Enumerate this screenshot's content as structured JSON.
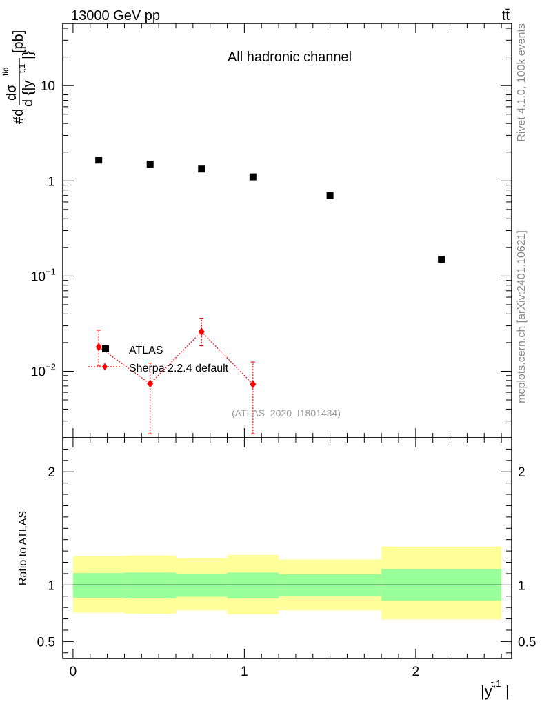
{
  "header": {
    "left": "13000 GeV pp",
    "right": "tt̄"
  },
  "side_labels": {
    "rivet": "Rivet 4.1.0,  100k events",
    "mcplots": "mcplots.cern.ch [arXiv:2401.10621]"
  },
  "chart_data": [
    {
      "type": "scatter",
      "title": "All hadronic channel",
      "ylabel_parts": {
        "prefix": "#d",
        "num": "dσ",
        "num_sup": "fid",
        "den": "d {|y",
        "den_sup": "t,1",
        "den_end": "|}",
        "unit": "[pb]"
      },
      "yscale": "log",
      "xlim": [
        -0.06,
        2.56
      ],
      "ylim": [
        0.002,
        45
      ],
      "yticks": [
        {
          "value": 10,
          "base": "10",
          "exp": ""
        },
        {
          "value": 1,
          "base": "1",
          "exp": ""
        },
        {
          "value": 0.1,
          "base": "10",
          "exp": "−1"
        },
        {
          "value": 0.01,
          "base": "10",
          "exp": "−2"
        }
      ],
      "watermark": "(ATLAS_2020_I1801434)",
      "legend": {
        "position": "lower-left",
        "entries": [
          "ATLAS",
          "Sherpa 2.2.4 default"
        ]
      },
      "series": [
        {
          "name": "ATLAS",
          "marker": "square",
          "color": "#000000",
          "points": [
            {
              "x": 0.15,
              "y": 1.65,
              "x_low": 0.0,
              "x_high": 0.3
            },
            {
              "x": 0.45,
              "y": 1.5,
              "x_low": 0.3,
              "x_high": 0.6
            },
            {
              "x": 0.75,
              "y": 1.33,
              "x_low": 0.6,
              "x_high": 0.9
            },
            {
              "x": 1.05,
              "y": 1.1,
              "x_low": 0.9,
              "x_high": 1.2
            },
            {
              "x": 1.5,
              "y": 0.7,
              "x_low": 1.2,
              "x_high": 1.8
            },
            {
              "x": 2.15,
              "y": 0.15,
              "x_low": 1.8,
              "x_high": 2.5
            }
          ]
        },
        {
          "name": "Sherpa 2.2.4 default",
          "marker": "diamond",
          "color": "#ff0000",
          "points": [
            {
              "x": 0.15,
              "y": 0.018,
              "y_low": 0.0115,
              "y_high": 0.027
            },
            {
              "x": 0.45,
              "y": 0.0074,
              "y_low": 0.0022,
              "y_high": 0.0122
            },
            {
              "x": 0.75,
              "y": 0.026,
              "y_low": 0.0185,
              "y_high": 0.036
            },
            {
              "x": 1.05,
              "y": 0.0073,
              "y_low": 0.0022,
              "y_high": 0.0125
            }
          ]
        }
      ]
    },
    {
      "type": "area",
      "ylabel": "Ratio to ATLAS",
      "xlabel": "|y",
      "xlabel_sup": "t,1",
      "xlabel_end": "|",
      "xlim": [
        -0.06,
        2.56
      ],
      "ylim": [
        0.35,
        2.3
      ],
      "yticks": [
        0.5,
        1,
        2
      ],
      "yticklabels": [
        "0.5",
        "1",
        "2"
      ],
      "xticks": [
        0,
        1,
        2
      ],
      "xticklabels": [
        "0",
        "1",
        "2"
      ],
      "reference_line": 1,
      "bands": [
        {
          "x_low": 0.0,
          "x_high": 0.3,
          "inner_low": 0.885,
          "inner_high": 1.105,
          "outer_low": 0.755,
          "outer_high": 1.255
        },
        {
          "x_low": 0.3,
          "x_high": 0.6,
          "inner_low": 0.88,
          "inner_high": 1.11,
          "outer_low": 0.745,
          "outer_high": 1.26
        },
        {
          "x_low": 0.6,
          "x_high": 0.9,
          "inner_low": 0.895,
          "inner_high": 1.1,
          "outer_low": 0.775,
          "outer_high": 1.235
        },
        {
          "x_low": 0.9,
          "x_high": 1.2,
          "inner_low": 0.88,
          "inner_high": 1.11,
          "outer_low": 0.74,
          "outer_high": 1.265
        },
        {
          "x_low": 1.2,
          "x_high": 1.8,
          "inner_low": 0.9,
          "inner_high": 1.095,
          "outer_low": 0.775,
          "outer_high": 1.225
        },
        {
          "x_low": 1.8,
          "x_high": 2.5,
          "inner_low": 0.86,
          "inner_high": 1.14,
          "outer_low": 0.695,
          "outer_high": 1.34
        }
      ],
      "inner_color": "#99ff99",
      "outer_color": "#ffff99"
    }
  ]
}
